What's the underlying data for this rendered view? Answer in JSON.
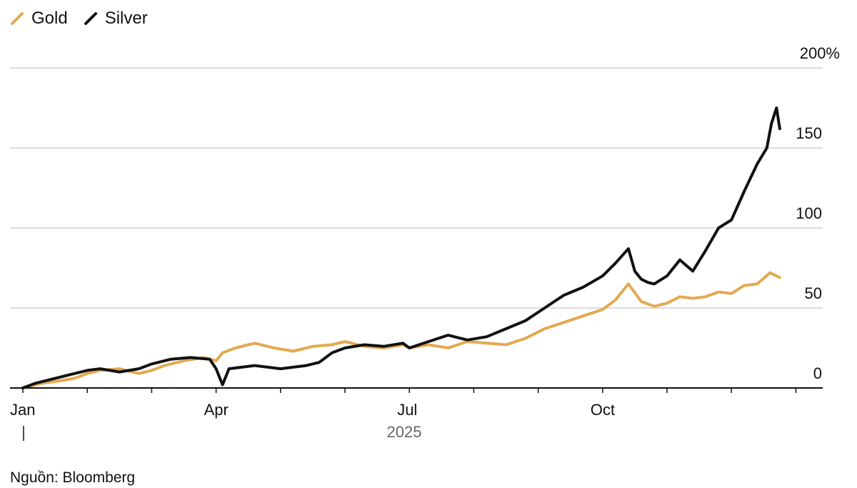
{
  "chart_data": {
    "type": "line",
    "title": "",
    "xlabel": "2025",
    "ylabel": "",
    "x_tick_labels": [
      "Jan",
      "Apr",
      "Jul",
      "Oct"
    ],
    "x_tick_months": [
      0,
      3,
      6,
      9
    ],
    "x_year_label": "2025",
    "x_range": [
      0,
      12
    ],
    "ylim": [
      0,
      200
    ],
    "y_ticks": [
      0,
      50,
      100,
      150,
      200
    ],
    "y_tick_labels": [
      "0",
      "50",
      "100",
      "150",
      "200%"
    ],
    "grid": true,
    "legend_position": "top-left",
    "series": [
      {
        "name": "Gold",
        "color": "#e3a952",
        "x": [
          0,
          0.3,
          0.5,
          0.8,
          1.0,
          1.2,
          1.5,
          1.8,
          2.0,
          2.2,
          2.5,
          2.8,
          3.0,
          3.1,
          3.3,
          3.6,
          3.9,
          4.2,
          4.5,
          4.8,
          5.0,
          5.3,
          5.6,
          5.9,
          6.0,
          6.3,
          6.6,
          6.9,
          7.2,
          7.5,
          7.8,
          8.1,
          8.4,
          8.7,
          9.0,
          9.2,
          9.4,
          9.6,
          9.8,
          10.0,
          10.2,
          10.4,
          10.6,
          10.8,
          11.0,
          11.2,
          11.4,
          11.6,
          11.75
        ],
        "values": [
          0,
          3,
          4,
          6,
          9,
          11,
          12,
          9,
          11,
          14,
          17,
          19,
          17,
          22,
          25,
          28,
          25,
          23,
          26,
          27,
          29,
          26,
          25,
          27,
          25,
          27,
          25,
          29,
          28,
          27,
          31,
          37,
          41,
          45,
          49,
          55,
          65,
          54,
          51,
          53,
          57,
          56,
          57,
          60,
          59,
          64,
          65,
          72,
          69
        ]
      },
      {
        "name": "Silver",
        "color": "#111111",
        "x": [
          0,
          0.2,
          0.4,
          0.6,
          0.8,
          1.0,
          1.2,
          1.5,
          1.8,
          2.0,
          2.3,
          2.6,
          2.9,
          3.0,
          3.1,
          3.2,
          3.4,
          3.6,
          3.8,
          4.0,
          4.2,
          4.4,
          4.6,
          4.8,
          5.0,
          5.3,
          5.6,
          5.9,
          6.0,
          6.3,
          6.6,
          6.9,
          7.2,
          7.5,
          7.8,
          8.1,
          8.4,
          8.7,
          9.0,
          9.2,
          9.4,
          9.5,
          9.6,
          9.7,
          9.8,
          10.0,
          10.2,
          10.4,
          10.6,
          10.8,
          11.0,
          11.2,
          11.4,
          11.55,
          11.62,
          11.7,
          11.75
        ],
        "values": [
          0,
          3,
          5,
          7,
          9,
          11,
          12,
          10,
          12,
          15,
          18,
          19,
          18,
          12,
          2,
          12,
          13,
          14,
          13,
          12,
          13,
          14,
          16,
          22,
          25,
          27,
          26,
          28,
          25,
          29,
          33,
          30,
          32,
          37,
          42,
          50,
          58,
          63,
          70,
          78,
          87,
          73,
          68,
          66,
          65,
          70,
          80,
          73,
          86,
          100,
          105,
          123,
          140,
          150,
          165,
          175,
          162
        ]
      }
    ]
  },
  "source": "Nguồn: Bloomberg"
}
